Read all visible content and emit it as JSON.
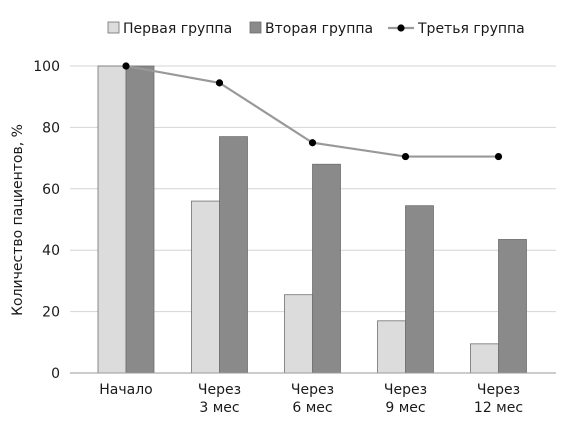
{
  "chart_data": {
    "type": "bar",
    "title": "",
    "xlabel": "",
    "ylabel": "Количество пациентов, %",
    "ylim": [
      0,
      100
    ],
    "yticks": [
      0,
      20,
      40,
      60,
      80,
      100
    ],
    "grid": true,
    "legend_position": "top",
    "categories": [
      [
        "Начало"
      ],
      [
        "Через",
        "3 мес"
      ],
      [
        "Через",
        "6 мес"
      ],
      [
        "Через",
        "9 мес"
      ],
      [
        "Через",
        "12 мес"
      ]
    ],
    "series": [
      {
        "name": "Первая группа",
        "type": "bar",
        "color": "#dcdcdc",
        "values": [
          100,
          56,
          25.5,
          17,
          9.5
        ]
      },
      {
        "name": "Вторая группа",
        "type": "bar",
        "color": "#8a8a8a",
        "values": [
          100,
          77,
          68,
          54.5,
          43.5
        ]
      },
      {
        "name": "Третья группа",
        "type": "line",
        "color": "#999999",
        "marker_color": "#000000",
        "values": [
          100,
          94.5,
          75,
          70.5,
          70.5
        ]
      }
    ]
  }
}
